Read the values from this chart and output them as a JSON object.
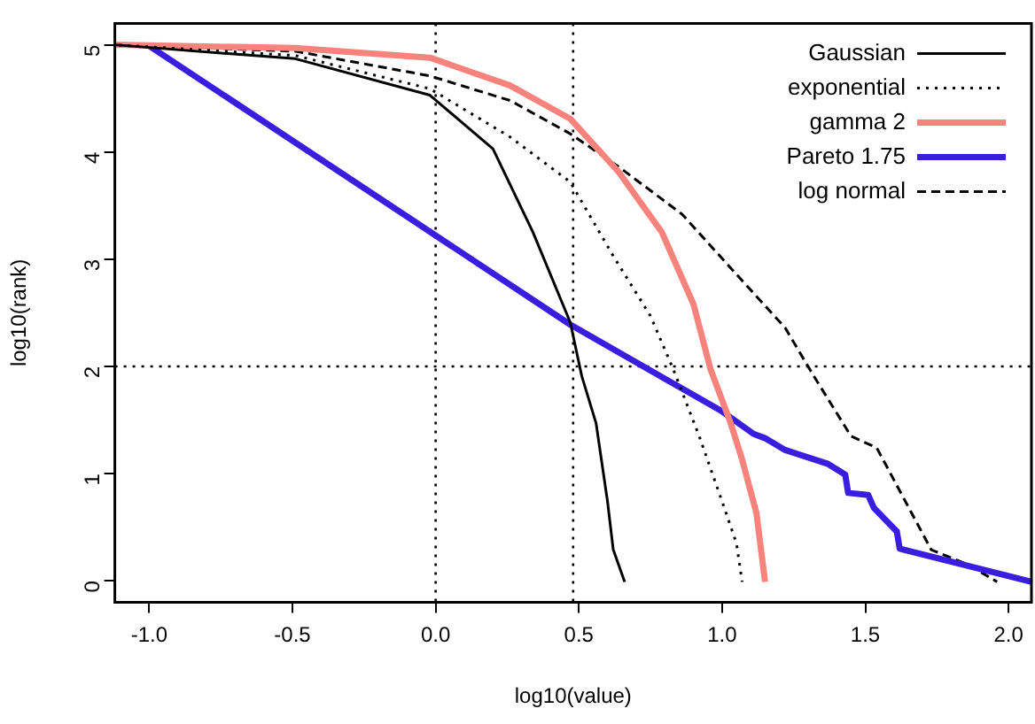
{
  "chart_data": {
    "type": "line",
    "xlabel": "log10(value)",
    "ylabel": "log10(rank)",
    "xlim": [
      -1.12,
      2.08
    ],
    "ylim": [
      -0.2,
      5.2
    ],
    "xticks": [
      {
        "value": -1,
        "label": "-1.0"
      },
      {
        "value": -0.5,
        "label": "-0.5"
      },
      {
        "value": 0,
        "label": "0.0"
      },
      {
        "value": 0.5,
        "label": "0.5"
      },
      {
        "value": 1,
        "label": "1.0"
      },
      {
        "value": 1.5,
        "label": "1.5"
      },
      {
        "value": 2,
        "label": "2.0"
      }
    ],
    "yticks": [
      0,
      1,
      2,
      3,
      4,
      5
    ],
    "grid": false,
    "legend": "top right",
    "marker": "none",
    "ref_lines": [
      {
        "axis": "x",
        "value": 0,
        "line_style": "dotted",
        "color": "#000000"
      },
      {
        "axis": "x",
        "value": 0.48,
        "line_style": "dotted",
        "color": "#000000"
      },
      {
        "axis": "y",
        "value": 2,
        "line_style": "dotted",
        "color": "#000000"
      }
    ],
    "series": [
      {
        "name": "Gaussian",
        "color": "#000000",
        "line_style": "solid",
        "x": [
          -1.12,
          -0.49,
          -0.02,
          0.2,
          0.34,
          0.47,
          0.51,
          0.56,
          0.6,
          0.62,
          0.66
        ],
        "values": [
          5.0,
          4.87,
          4.53,
          4.03,
          3.25,
          2.41,
          1.91,
          1.47,
          0.74,
          0.29,
          -0.01
        ]
      },
      {
        "name": "exponential",
        "color": "#000000",
        "line_style": "dotted",
        "x": [
          -1.12,
          -0.49,
          -0.02,
          0.26,
          0.47,
          0.62,
          0.75,
          0.83,
          0.92,
          1.0,
          1.05,
          1.07
        ],
        "values": [
          5.0,
          4.9,
          4.59,
          4.14,
          3.72,
          3.03,
          2.47,
          1.97,
          1.35,
          0.74,
          0.35,
          -0.01
        ]
      },
      {
        "name": "gamma 2",
        "color": "#f8827c",
        "line_style": "solid",
        "x": [
          -1.12,
          -0.49,
          -0.02,
          0.26,
          0.47,
          0.64,
          0.79,
          0.9,
          0.96,
          1.03,
          1.07,
          1.12,
          1.15
        ],
        "values": [
          5.0,
          4.97,
          4.88,
          4.62,
          4.31,
          3.81,
          3.25,
          2.58,
          1.97,
          1.47,
          1.13,
          0.63,
          -0.01
        ]
      },
      {
        "name": "Pareto 1.75",
        "color": "#3a1ee0",
        "line_style": "solid",
        "x": [
          -1.0,
          0.47,
          1.0,
          1.11,
          1.15,
          1.22,
          1.37,
          1.43,
          1.44,
          1.51,
          1.53,
          1.61,
          1.62,
          2.08
        ],
        "values": [
          4.99,
          2.39,
          1.58,
          1.37,
          1.33,
          1.22,
          1.09,
          0.99,
          0.82,
          0.8,
          0.68,
          0.46,
          0.3,
          -0.01
        ]
      },
      {
        "name": "log normal",
        "color": "#000000",
        "line_style": "dashed",
        "x": [
          -1.12,
          -0.49,
          -0.02,
          0.26,
          0.47,
          0.64,
          0.86,
          1.07,
          1.22,
          1.32,
          1.45,
          1.54,
          1.64,
          1.73,
          1.86,
          1.96
        ],
        "values": [
          5.0,
          4.94,
          4.71,
          4.48,
          4.17,
          3.86,
          3.42,
          2.8,
          2.36,
          1.91,
          1.35,
          1.24,
          0.74,
          0.29,
          0.15,
          -0.01
        ]
      }
    ]
  }
}
